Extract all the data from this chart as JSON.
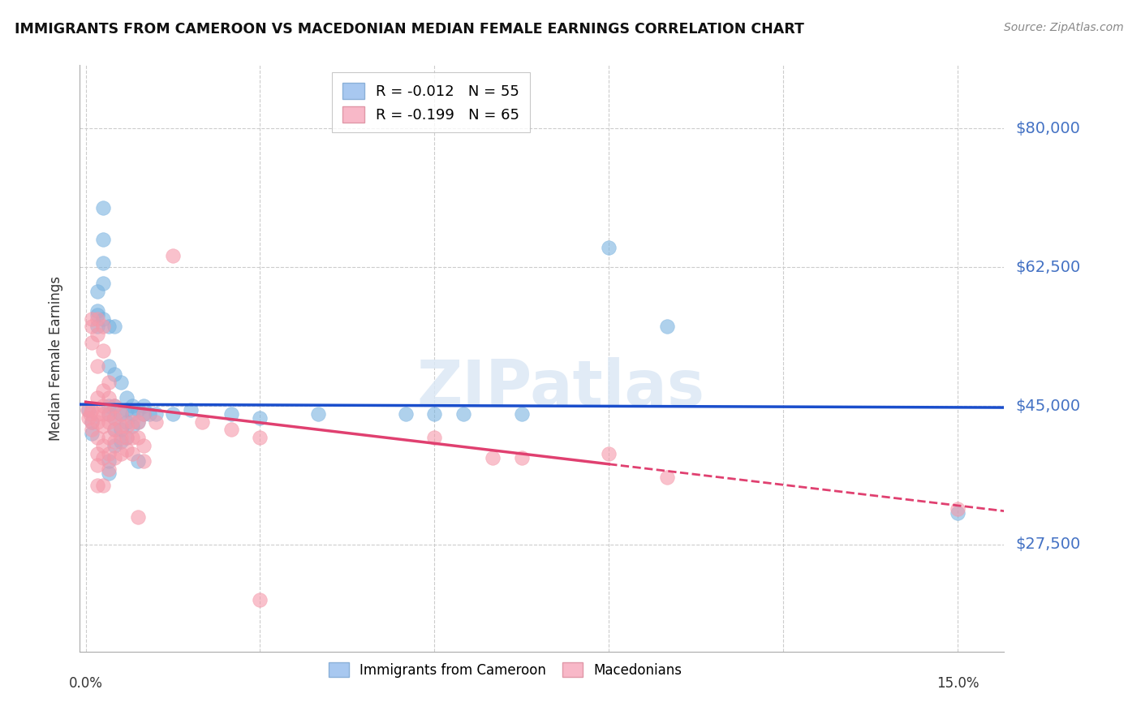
{
  "title": "IMMIGRANTS FROM CAMEROON VS MACEDONIAN MEDIAN FEMALE EARNINGS CORRELATION CHART",
  "source": "Source: ZipAtlas.com",
  "ylabel": "Median Female Earnings",
  "ytick_labels": [
    "$27,500",
    "$45,000",
    "$62,500",
    "$80,000"
  ],
  "ytick_values": [
    27500,
    45000,
    62500,
    80000
  ],
  "ymin": 14000,
  "ymax": 88000,
  "xmin": -0.001,
  "xmax": 0.158,
  "watermark": "ZIPatlas",
  "blue_color": "#7ab3e0",
  "pink_color": "#f599aa",
  "blue_line_color": "#1a4ecc",
  "pink_line_color": "#e04070",
  "blue_scatter": [
    [
      0.0005,
      44500
    ],
    [
      0.001,
      43000
    ],
    [
      0.001,
      41500
    ],
    [
      0.002,
      57000
    ],
    [
      0.002,
      59500
    ],
    [
      0.002,
      55000
    ],
    [
      0.002,
      56500
    ],
    [
      0.003,
      70000
    ],
    [
      0.003,
      66000
    ],
    [
      0.003,
      63000
    ],
    [
      0.003,
      56000
    ],
    [
      0.003,
      60500
    ],
    [
      0.004,
      55000
    ],
    [
      0.004,
      50000
    ],
    [
      0.004,
      45000
    ],
    [
      0.004,
      44000
    ],
    [
      0.004,
      38000
    ],
    [
      0.004,
      36500
    ],
    [
      0.005,
      55000
    ],
    [
      0.005,
      49000
    ],
    [
      0.005,
      45000
    ],
    [
      0.005,
      43500
    ],
    [
      0.005,
      42000
    ],
    [
      0.005,
      40000
    ],
    [
      0.006,
      48000
    ],
    [
      0.006,
      44000
    ],
    [
      0.006,
      42000
    ],
    [
      0.006,
      40500
    ],
    [
      0.007,
      46000
    ],
    [
      0.007,
      44500
    ],
    [
      0.007,
      43000
    ],
    [
      0.007,
      41000
    ],
    [
      0.008,
      45000
    ],
    [
      0.008,
      44000
    ],
    [
      0.008,
      42500
    ],
    [
      0.009,
      44500
    ],
    [
      0.009,
      43000
    ],
    [
      0.009,
      38000
    ],
    [
      0.01,
      45000
    ],
    [
      0.01,
      44000
    ],
    [
      0.011,
      44000
    ],
    [
      0.012,
      44000
    ],
    [
      0.015,
      44000
    ],
    [
      0.018,
      44500
    ],
    [
      0.025,
      44000
    ],
    [
      0.03,
      43500
    ],
    [
      0.04,
      44000
    ],
    [
      0.055,
      44000
    ],
    [
      0.06,
      44000
    ],
    [
      0.065,
      44000
    ],
    [
      0.075,
      44000
    ],
    [
      0.09,
      65000
    ],
    [
      0.1,
      55000
    ],
    [
      0.15,
      31500
    ]
  ],
  "pink_scatter": [
    [
      0.0003,
      44500
    ],
    [
      0.0005,
      43500
    ],
    [
      0.0008,
      44000
    ],
    [
      0.001,
      56000
    ],
    [
      0.001,
      55000
    ],
    [
      0.001,
      53000
    ],
    [
      0.001,
      44500
    ],
    [
      0.001,
      43000
    ],
    [
      0.001,
      42000
    ],
    [
      0.002,
      56000
    ],
    [
      0.002,
      54000
    ],
    [
      0.002,
      50000
    ],
    [
      0.002,
      46000
    ],
    [
      0.002,
      44000
    ],
    [
      0.002,
      43000
    ],
    [
      0.002,
      41000
    ],
    [
      0.002,
      39000
    ],
    [
      0.002,
      37500
    ],
    [
      0.002,
      35000
    ],
    [
      0.003,
      55000
    ],
    [
      0.003,
      52000
    ],
    [
      0.003,
      47000
    ],
    [
      0.003,
      45000
    ],
    [
      0.003,
      44000
    ],
    [
      0.003,
      42500
    ],
    [
      0.003,
      40000
    ],
    [
      0.003,
      38500
    ],
    [
      0.003,
      35000
    ],
    [
      0.004,
      48000
    ],
    [
      0.004,
      46000
    ],
    [
      0.004,
      44000
    ],
    [
      0.004,
      43000
    ],
    [
      0.004,
      41000
    ],
    [
      0.004,
      39000
    ],
    [
      0.004,
      37000
    ],
    [
      0.005,
      45000
    ],
    [
      0.005,
      43500
    ],
    [
      0.005,
      42000
    ],
    [
      0.005,
      40500
    ],
    [
      0.005,
      38500
    ],
    [
      0.006,
      44000
    ],
    [
      0.006,
      42500
    ],
    [
      0.006,
      41000
    ],
    [
      0.006,
      39000
    ],
    [
      0.007,
      42500
    ],
    [
      0.007,
      41000
    ],
    [
      0.007,
      39500
    ],
    [
      0.008,
      43000
    ],
    [
      0.008,
      41000
    ],
    [
      0.008,
      39000
    ],
    [
      0.009,
      43000
    ],
    [
      0.009,
      41000
    ],
    [
      0.009,
      31000
    ],
    [
      0.01,
      44000
    ],
    [
      0.01,
      40000
    ],
    [
      0.01,
      38000
    ],
    [
      0.012,
      43000
    ],
    [
      0.015,
      64000
    ],
    [
      0.02,
      43000
    ],
    [
      0.025,
      42000
    ],
    [
      0.03,
      41000
    ],
    [
      0.06,
      41000
    ],
    [
      0.07,
      38500
    ],
    [
      0.075,
      38500
    ],
    [
      0.09,
      39000
    ],
    [
      0.1,
      36000
    ],
    [
      0.15,
      32000
    ],
    [
      0.03,
      20500
    ]
  ]
}
